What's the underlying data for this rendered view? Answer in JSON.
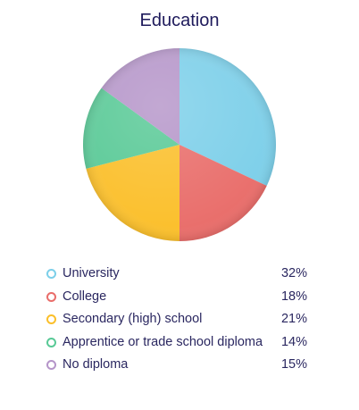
{
  "chart_data": {
    "type": "pie",
    "title": "Education",
    "categories": [
      "University",
      "College",
      "Secondary (high) school",
      "Apprentice or trade school diploma",
      "No diploma"
    ],
    "values": [
      32,
      18,
      21,
      14,
      15
    ],
    "value_labels": [
      "32%",
      "18%",
      "21%",
      "14%",
      "15%"
    ],
    "colors": [
      "#7ccfe9",
      "#e96d6a",
      "#fbbf2a",
      "#58c996",
      "#b595c9"
    ],
    "legend_position": "bottom"
  }
}
